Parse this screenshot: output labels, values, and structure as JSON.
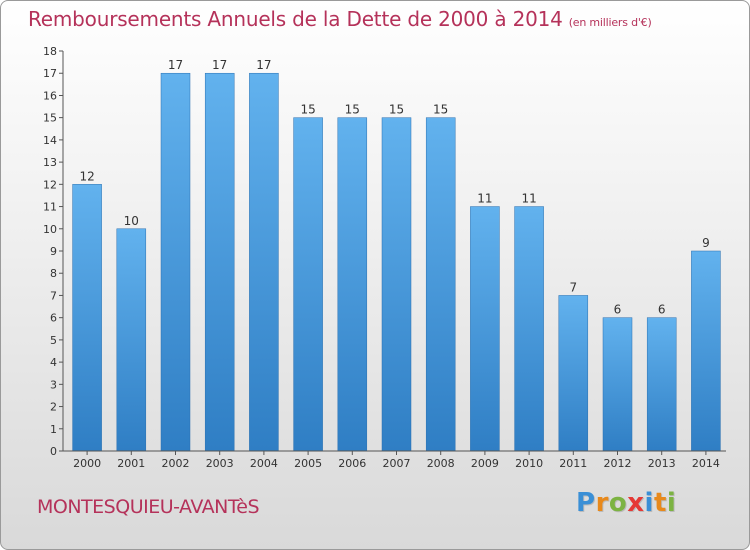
{
  "header": {
    "title": "Remboursements Annuels de la Dette de 2000 à 2014",
    "subtitle": "(en milliers d'€)"
  },
  "footer": {
    "commune": "MONTESQUIEU-AVANTèS",
    "logo_letters": [
      "P",
      "r",
      "o",
      "x",
      "i",
      "t",
      "i"
    ],
    "logo_colors": [
      "#3a8fd6",
      "#e8891b",
      "#7cb342",
      "#e53935",
      "#3a8fd6",
      "#e8891b",
      "#7cb342"
    ]
  },
  "colors": {
    "accent": "#b5325a",
    "bar_top": "#62b2ee",
    "bar_bottom": "#2f7ec4"
  },
  "chart_data": {
    "type": "bar",
    "categories": [
      "2000",
      "2001",
      "2002",
      "2003",
      "2004",
      "2005",
      "2006",
      "2007",
      "2008",
      "2009",
      "2010",
      "2011",
      "2012",
      "2013",
      "2014"
    ],
    "values": [
      12,
      10,
      17,
      17,
      17,
      15,
      15,
      15,
      15,
      11,
      11,
      7,
      6,
      6,
      9
    ],
    "yticks": [
      0,
      1,
      2,
      3,
      4,
      5,
      6,
      7,
      8,
      9,
      10,
      11,
      12,
      13,
      14,
      15,
      16,
      17,
      18
    ],
    "ylim": [
      0,
      18
    ],
    "grid": false
  }
}
